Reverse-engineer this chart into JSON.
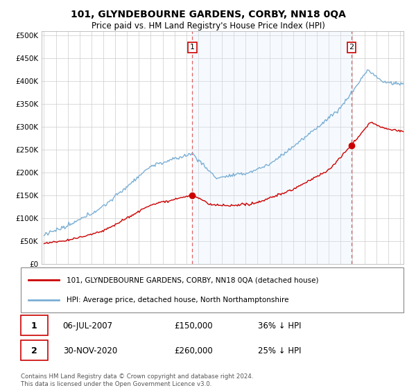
{
  "title": "101, GLYNDEBOURNE GARDENS, CORBY, NN18 0QA",
  "subtitle": "Price paid vs. HM Land Registry's House Price Index (HPI)",
  "ytick_values": [
    0,
    50000,
    100000,
    150000,
    200000,
    250000,
    300000,
    350000,
    400000,
    450000,
    500000
  ],
  "ylim": [
    0,
    510000
  ],
  "xlim_start": 1994.8,
  "xlim_end": 2025.3,
  "marker1_x": 2007.5,
  "marker1_y": 150000,
  "marker1_label": "1",
  "marker2_x": 2020.92,
  "marker2_y": 260000,
  "marker2_label": "2",
  "sale_color": "#cc0000",
  "hpi_color": "#7bafd4",
  "vline_color": "#e06060",
  "shade_color": "#ddeeff",
  "legend_sale": "101, GLYNDEBOURNE GARDENS, CORBY, NN18 0QA (detached house)",
  "legend_hpi": "HPI: Average price, detached house, North Northamptonshire",
  "table_row1": [
    "1",
    "06-JUL-2007",
    "£150,000",
    "36% ↓ HPI"
  ],
  "table_row2": [
    "2",
    "30-NOV-2020",
    "£260,000",
    "25% ↓ HPI"
  ],
  "footnote1": "Contains HM Land Registry data © Crown copyright and database right 2024.",
  "footnote2": "This data is licensed under the Open Government Licence v3.0.",
  "background_color": "#ffffff",
  "plot_bg_color": "#ffffff",
  "grid_color": "#cccccc"
}
